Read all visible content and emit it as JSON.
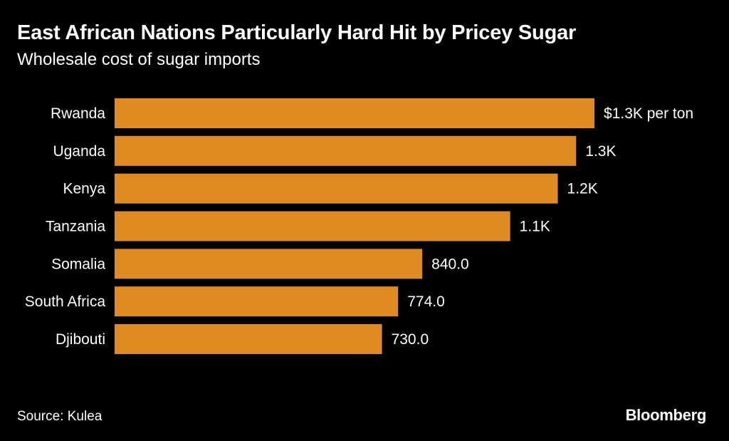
{
  "header": {
    "title": "East African Nations Particularly Hard Hit by Pricey Sugar",
    "subtitle": "Wholesale cost of sugar imports"
  },
  "footer": {
    "source": "Source: Kulea",
    "brand": "Bloomberg"
  },
  "colors": {
    "background": "#000000",
    "bar": "#E08A22",
    "text": "#ffffff"
  },
  "chart_data": {
    "type": "bar",
    "orientation": "horizontal",
    "title": "East African Nations Particularly Hard Hit by Pricey Sugar",
    "subtitle": "Wholesale cost of sugar imports",
    "xlabel": "",
    "ylabel": "",
    "unit": "$ per ton",
    "categories": [
      "Rwanda",
      "Uganda",
      "Kenya",
      "Tanzania",
      "Somalia",
      "South Africa",
      "Djibouti"
    ],
    "values": [
      1310,
      1260,
      1210,
      1080,
      840,
      774,
      730
    ],
    "value_labels": [
      "$1.3K per ton",
      "1.3K",
      "1.2K",
      "1.1K",
      "840.0",
      "774.0",
      "730.0"
    ],
    "xlim": [
      0,
      1310
    ],
    "grid": false,
    "legend": "none"
  }
}
